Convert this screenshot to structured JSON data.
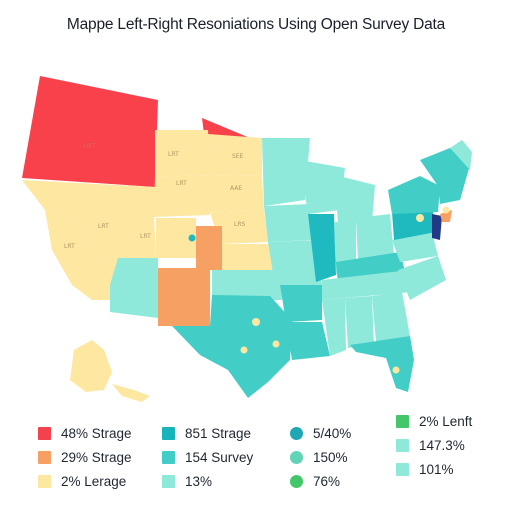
{
  "title": "Mappe Left-Right Resoniations Using Open Survey Data",
  "colors": {
    "red": "#f9414b",
    "orange": "#f7a063",
    "yellow": "#fde7a1",
    "teal": "#42cdc6",
    "mint": "#8fe9db",
    "deepteal": "#1ebac0",
    "navy": "#223a86",
    "green": "#44c76a"
  },
  "state_labels": [
    "UFT",
    "LRT",
    "SEE",
    "LRT",
    "LRT",
    "LRT",
    "LRS",
    "AAE",
    "LRT"
  ],
  "legend": [
    {
      "label": "48% Strage",
      "color": "#f5414b",
      "shape": "square"
    },
    {
      "label": "29% Strage",
      "color": "#f7a063",
      "shape": "square"
    },
    {
      "label": "2% Lerage",
      "color": "#fde7a1",
      "shape": "square"
    },
    {
      "label": "851 Strage",
      "color": "#18b4bc",
      "shape": "square"
    },
    {
      "label": "154 Survey",
      "color": "#42cdc6",
      "shape": "square"
    },
    {
      "label": "13%",
      "color": "#8fe9db",
      "shape": "square"
    },
    {
      "label": "5/40%",
      "color": "#1ea7b5",
      "shape": "circle"
    },
    {
      "label": "150%",
      "color": "#5fd4b6",
      "shape": "circle"
    },
    {
      "label": "76%",
      "color": "#44c76a",
      "shape": "circle"
    },
    {
      "label": "2% Lenft",
      "color": "#44c76a",
      "shape": "square"
    },
    {
      "label": "147.3%",
      "color": "#8fe9db",
      "shape": "square"
    },
    {
      "label": "101%",
      "color": "#8fe9db",
      "shape": "square"
    }
  ]
}
